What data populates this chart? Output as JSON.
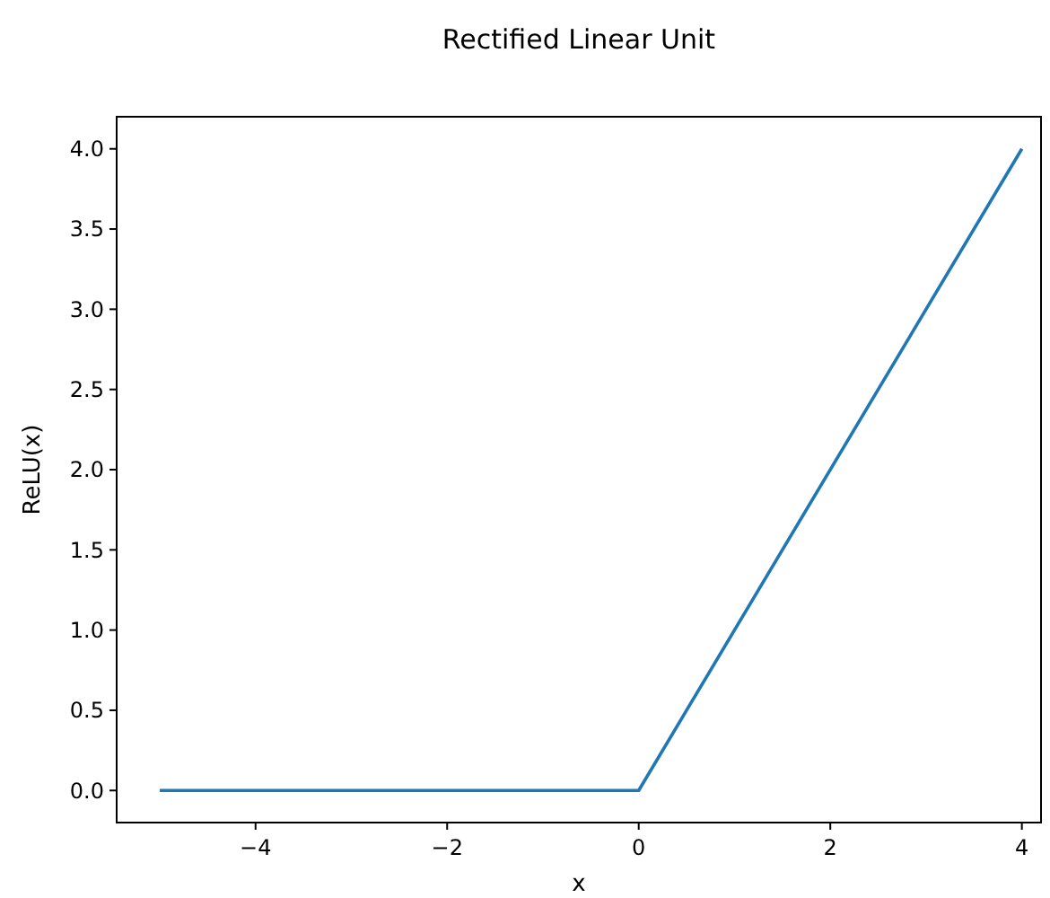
{
  "chart_data": {
    "type": "line",
    "title": "Rectified Linear Unit",
    "xlabel": "x",
    "ylabel": "ReLU(x)",
    "x": [
      -5,
      0,
      4
    ],
    "series": [
      {
        "color": "#1f77b4",
        "values": [
          0,
          0,
          4
        ]
      }
    ],
    "xlim": [
      -5.45,
      4.2
    ],
    "xticks": [
      {
        "value": -4,
        "label": "−4"
      },
      {
        "value": -2,
        "label": "−2"
      },
      0,
      2,
      4
    ],
    "ylim": [
      -0.2,
      4.2
    ],
    "yticks": [
      {
        "value": 0,
        "label": "0.0"
      },
      {
        "value": 0.5,
        "label": "0.5"
      },
      {
        "value": 1,
        "label": "1.0"
      },
      {
        "value": 1.5,
        "label": "1.5"
      },
      {
        "value": 2,
        "label": "2.0"
      },
      {
        "value": 2.5,
        "label": "2.5"
      },
      {
        "value": 3,
        "label": "3.0"
      },
      {
        "value": 3.5,
        "label": "3.5"
      },
      {
        "value": 4,
        "label": "4.0"
      }
    ],
    "grid": false
  }
}
